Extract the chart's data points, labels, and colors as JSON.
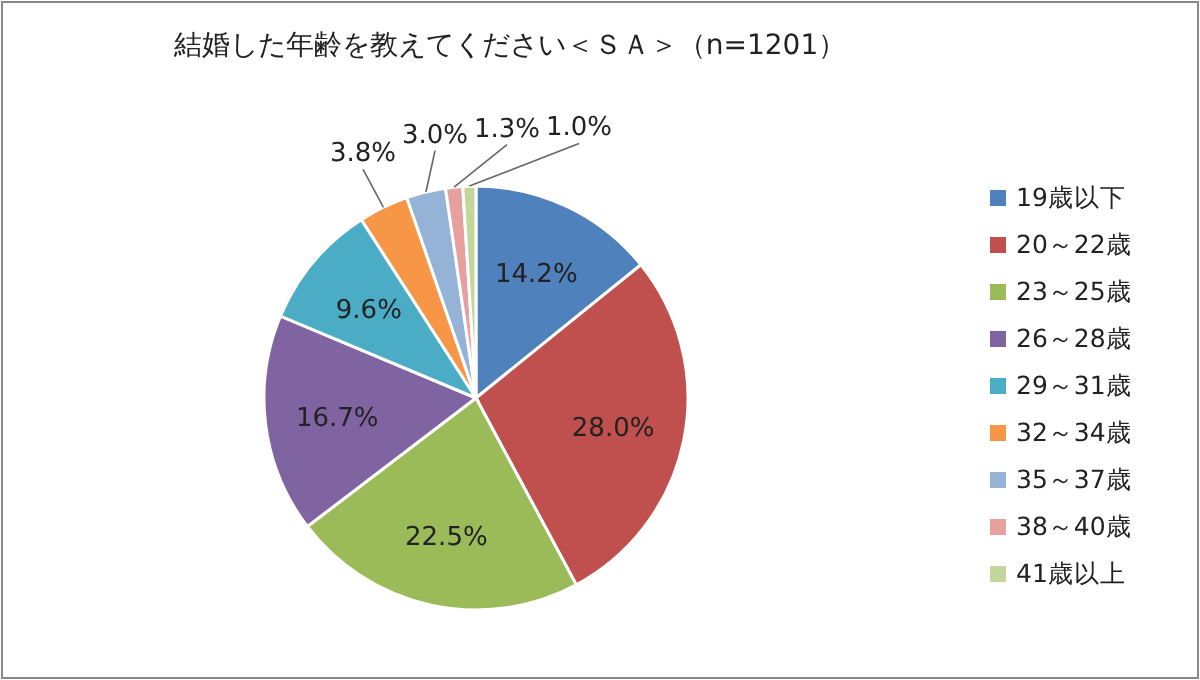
{
  "chart_data": {
    "type": "pie",
    "title": "結婚した年齢を教えてください＜ＳＡ＞（n=1201）",
    "categories": [
      "19歳以下",
      "20～22歳",
      "23～25歳",
      "26～28歳",
      "29～31歳",
      "32～34歳",
      "35～37歳",
      "38～40歳",
      "41歳以上"
    ],
    "values": [
      14.2,
      28.0,
      22.5,
      16.7,
      9.6,
      3.8,
      3.0,
      1.3,
      1.0
    ],
    "value_labels": [
      "14.2%",
      "28.0%",
      "22.5%",
      "16.7%",
      "9.6%",
      "3.8%",
      "3.0%",
      "1.3%",
      "1.0%"
    ],
    "colors": [
      "#4f81bd",
      "#c0504d",
      "#9bbb59",
      "#8064a2",
      "#4bacc6",
      "#f79646",
      "#95b3d7",
      "#e6a09e",
      "#c3d69b"
    ],
    "legend": "right"
  }
}
